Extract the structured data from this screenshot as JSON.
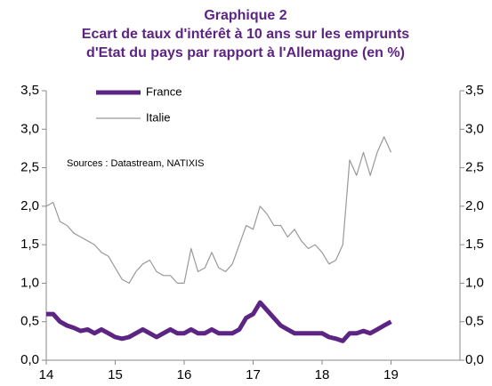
{
  "chart_data": {
    "type": "line",
    "title": "Graphique 2",
    "subtitle": [
      "Ecart de taux d'intérêt à 10 ans sur les emprunts",
      "d'Etat du pays par rapport à l'Allemagne (en %)"
    ],
    "annotation": "Sources : Datastream, NATIXIS",
    "x": [
      14,
      14.1,
      14.2,
      14.3,
      14.4,
      14.5,
      14.6,
      14.7,
      14.8,
      14.9,
      15,
      15.1,
      15.2,
      15.3,
      15.4,
      15.5,
      15.6,
      15.7,
      15.8,
      15.9,
      16,
      16.1,
      16.2,
      16.3,
      16.4,
      16.5,
      16.6,
      16.7,
      16.8,
      16.9,
      17,
      17.1,
      17.2,
      17.3,
      17.4,
      17.5,
      17.6,
      17.7,
      17.8,
      17.9,
      18,
      18.1,
      18.2,
      18.3,
      18.4,
      18.5,
      18.6,
      18.7,
      18.8,
      18.9,
      19
    ],
    "series": [
      {
        "name": "France",
        "color": "#5c2483",
        "values": [
          0.6,
          0.6,
          0.5,
          0.45,
          0.42,
          0.38,
          0.4,
          0.35,
          0.4,
          0.35,
          0.3,
          0.28,
          0.3,
          0.35,
          0.4,
          0.35,
          0.3,
          0.35,
          0.4,
          0.35,
          0.35,
          0.4,
          0.35,
          0.35,
          0.4,
          0.35,
          0.35,
          0.35,
          0.4,
          0.55,
          0.6,
          0.75,
          0.65,
          0.55,
          0.45,
          0.4,
          0.35,
          0.35,
          0.35,
          0.35,
          0.35,
          0.3,
          0.28,
          0.25,
          0.35,
          0.35,
          0.38,
          0.35,
          0.4,
          0.45,
          0.5
        ]
      },
      {
        "name": "Italie",
        "color": "#999999",
        "values": [
          2.0,
          2.05,
          1.8,
          1.75,
          1.65,
          1.6,
          1.55,
          1.5,
          1.4,
          1.35,
          1.2,
          1.05,
          1.0,
          1.15,
          1.25,
          1.3,
          1.15,
          1.1,
          1.1,
          1.0,
          1.0,
          1.45,
          1.15,
          1.2,
          1.4,
          1.2,
          1.15,
          1.25,
          1.5,
          1.75,
          1.7,
          2.0,
          1.9,
          1.75,
          1.75,
          1.6,
          1.7,
          1.55,
          1.45,
          1.5,
          1.4,
          1.25,
          1.3,
          1.5,
          2.6,
          2.4,
          2.7,
          2.4,
          2.7,
          2.9,
          2.7
        ]
      }
    ],
    "xlim": [
      14,
      20
    ],
    "xticks": [
      14,
      15,
      16,
      17,
      18,
      19
    ],
    "ylim": [
      0,
      3.5
    ],
    "yticks": [
      {
        "value": 0,
        "label": "0,0"
      },
      {
        "value": 0.5,
        "label": "0,5"
      },
      {
        "value": 1,
        "label": "1,0"
      },
      {
        "value": 1.5,
        "label": "1,5"
      },
      {
        "value": 2,
        "label": "2,0"
      },
      {
        "value": 2.5,
        "label": "2,5"
      },
      {
        "value": 3,
        "label": "3,0"
      },
      {
        "value": 3.5,
        "label": "3,5"
      }
    ],
    "y2lim": [
      0,
      3.5
    ],
    "y2ticks": [
      {
        "value": 0,
        "label": "0,0"
      },
      {
        "value": 0.5,
        "label": "0,5"
      },
      {
        "value": 1,
        "label": "1,0"
      },
      {
        "value": 1.5,
        "label": "1,5"
      },
      {
        "value": 2,
        "label": "2,0"
      },
      {
        "value": 2.5,
        "label": "2,5"
      },
      {
        "value": 3,
        "label": "3,0"
      },
      {
        "value": 3.5,
        "label": "3,5"
      }
    ],
    "legend": "top-left"
  }
}
